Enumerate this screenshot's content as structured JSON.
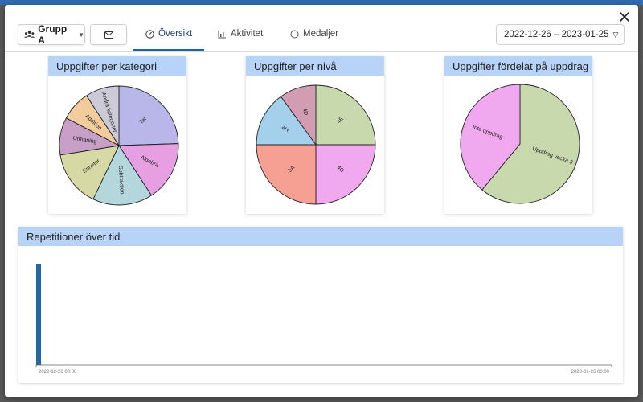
{
  "toolbar": {
    "group_label": "Grupp A",
    "tabs": [
      {
        "label": "Översikt",
        "icon": "dashboard-icon",
        "active": true
      },
      {
        "label": "Aktivitet",
        "icon": "bar-chart-icon",
        "active": false
      },
      {
        "label": "Medaljer",
        "icon": "circle-icon",
        "active": false
      }
    ],
    "date_range": "2022-12-26 – 2023-01-25"
  },
  "colors": {
    "header_blue": "#b7d3f7",
    "accent": "#1e5fb4",
    "bar": "#2166a8"
  },
  "chart_data": [
    {
      "type": "pie",
      "title": "Uppgifter per kategori",
      "labels": [
        "Tal",
        "Algebra",
        "Subtraktion",
        "Enheter",
        "Utmaning",
        "Addition",
        "Andra kategorier"
      ],
      "values": [
        24,
        16,
        16,
        15,
        10,
        8,
        9
      ],
      "colors": [
        "#b9b6ea",
        "#e6a0e2",
        "#b3d7dd",
        "#d7d9a4",
        "#c89fc7",
        "#f2cc9c",
        "#cdcad8"
      ]
    },
    {
      "type": "pie",
      "title": "Uppgifter per nivå",
      "labels": [
        "4E",
        "4D",
        "5A",
        "4H",
        "4D"
      ],
      "values": [
        25,
        25,
        25,
        15,
        10
      ],
      "colors": [
        "#c9d9ae",
        "#f0a8ee",
        "#f5a092",
        "#a4d0ec",
        "#d29db2"
      ]
    },
    {
      "type": "pie",
      "title": "Uppgifter fördelat på uppdrag",
      "labels": [
        "Uppdrag vecka 3",
        "Inte uppdrag"
      ],
      "values": [
        61,
        39
      ],
      "colors": [
        "#c9d9ae",
        "#f0a8ee"
      ]
    },
    {
      "type": "bar",
      "title": "Repetitioner över tid",
      "x": [
        "2022-12-26 00:00"
      ],
      "values": [
        1
      ],
      "xlim": [
        "2022-12-26 00:00",
        "2023-01-26 00:00"
      ],
      "x_ticks": [
        "2022-12-26 00:00",
        "2023-01-26 00:00"
      ]
    }
  ]
}
